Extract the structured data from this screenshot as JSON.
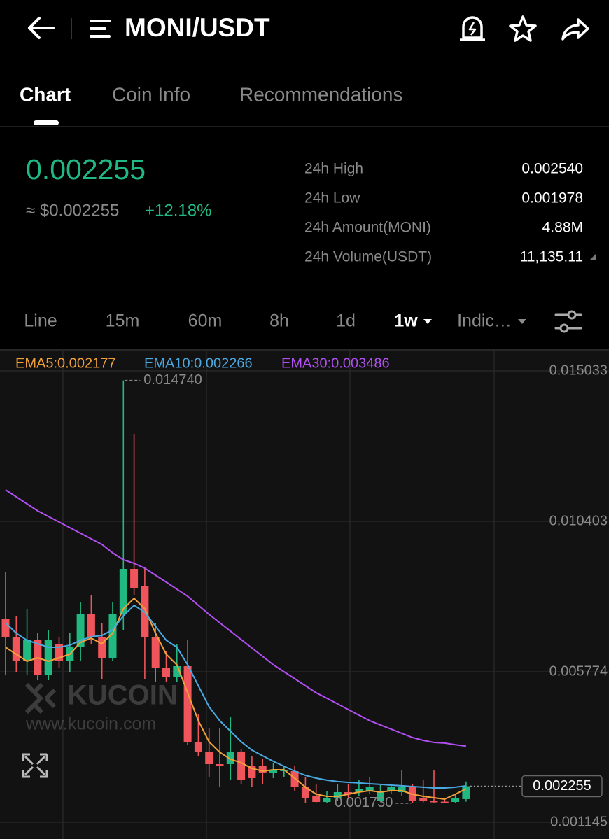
{
  "header": {
    "title": "MONI/USDT"
  },
  "tabs": [
    "Chart",
    "Coin Info",
    "Recommendations"
  ],
  "price": {
    "last": "0.002255",
    "fiat": "≈ $0.002255",
    "change": "+12.18%"
  },
  "stats": [
    {
      "label": "24h High",
      "value": "0.002540"
    },
    {
      "label": "24h Low",
      "value": "0.001978"
    },
    {
      "label": "24h Amount(MONI)",
      "value": "4.88M"
    },
    {
      "label": "24h Volume(USDT)",
      "value": "11,135.11"
    }
  ],
  "timeframes": [
    "Line",
    "15m",
    "60m",
    "8h",
    "1d",
    "1w",
    "Indic…"
  ],
  "watermark": {
    "brand": "KUCOIN",
    "url": "www.kucoin.com"
  },
  "chart_data": {
    "type": "candlestick",
    "up_color": "#20b982",
    "down_color": "#f0555b",
    "grid": true,
    "ylim": [
      0.000823,
      0.015679
    ],
    "yticks": [
      0.015033,
      0.010403,
      0.005774,
      0.001145
    ],
    "high_label": "0.014740",
    "low_label": "0.001730",
    "open": [
      0.00739,
      0.006852,
      0.006098,
      0.006744,
      0.005667,
      0.006636,
      0.006098,
      0.006529,
      0.007541,
      0.006852,
      0.006206,
      0.007541,
      0.00894,
      0.008402,
      0.006852,
      0.005883,
      0.005603,
      0.005947,
      0.003622,
      0.003299,
      0.002933,
      0.002933,
      0.003299,
      0.002869,
      0.002869,
      0.002653,
      0.002718,
      0.002718,
      0.002223,
      0.001943,
      0.00177,
      0.0019,
      0.002072,
      0.002072,
      0.002115,
      0.0018,
      0.002115,
      0.002072,
      0.002223,
      0.0019,
      0.001792,
      0.00178,
      0.00177,
      0.001857
    ],
    "high": [
      0.008832,
      0.007498,
      0.007713,
      0.006959,
      0.007067,
      0.006852,
      0.006959,
      0.007928,
      0.008143,
      0.007282,
      0.007928,
      0.01474,
      0.013095,
      0.009005,
      0.007282,
      0.006421,
      0.006636,
      0.006744,
      0.004483,
      0.004053,
      0.004053,
      0.004376,
      0.003407,
      0.003191,
      0.003084,
      0.002976,
      0.002869,
      0.002869,
      0.002546,
      0.002331,
      0.002115,
      0.002331,
      0.002331,
      0.002438,
      0.002546,
      0.002288,
      0.002331,
      0.002761,
      0.002331,
      0.002438,
      0.002761,
      0.0019,
      0.002007,
      0.0024
    ],
    "low": [
      0.005667,
      0.005775,
      0.005667,
      0.005517,
      0.005517,
      0.005883,
      0.005775,
      0.006098,
      0.006636,
      0.00556,
      0.006098,
      0.007067,
      0.008143,
      0.00556,
      0.005452,
      0.005452,
      0.005452,
      0.003515,
      0.003191,
      0.002546,
      0.002223,
      0.002438,
      0.002331,
      0.002223,
      0.002331,
      0.002503,
      0.002546,
      0.002115,
      0.00175,
      0.00176,
      0.00174,
      0.001792,
      0.0019,
      0.001943,
      0.002007,
      0.00178,
      0.002007,
      0.001943,
      0.00173,
      0.00176,
      0.00175,
      0.001745,
      0.00175,
      0.00178
    ],
    "close": [
      0.006852,
      0.006098,
      0.006744,
      0.005667,
      0.006744,
      0.006098,
      0.006529,
      0.007541,
      0.006852,
      0.006206,
      0.007541,
      0.00894,
      0.008359,
      0.006852,
      0.005883,
      0.005603,
      0.005947,
      0.003622,
      0.003299,
      0.002933,
      0.002869,
      0.003299,
      0.002438,
      0.002503,
      0.002653,
      0.002761,
      0.002761,
      0.002223,
      0.0019,
      0.00177,
      0.0019,
      0.002072,
      0.002007,
      0.002158,
      0.002223,
      0.002115,
      0.002223,
      0.002223,
      0.001792,
      0.001792,
      0.00178,
      0.00177,
      0.0019,
      0.002255
    ],
    "series": [
      {
        "name": "EMA5:0.002177",
        "color": "#f2a13a",
        "values": [
          0.006529,
          0.006314,
          0.006099,
          0.006206,
          0.006099,
          0.006206,
          0.006314,
          0.00668,
          0.006809,
          0.006637,
          0.00696,
          0.007713,
          0.008036,
          0.007713,
          0.00696,
          0.006314,
          0.005991,
          0.00513,
          0.004269,
          0.003623,
          0.0033,
          0.003084,
          0.002976,
          0.002804,
          0.002718,
          0.002761,
          0.002761,
          0.002503,
          0.002224,
          0.002008,
          0.001943,
          0.001943,
          0.002008,
          0.002073,
          0.002116,
          0.002073,
          0.002116,
          0.002116,
          0.002008,
          0.001943,
          0.0019,
          0.001857,
          0.002008,
          0.002177
        ]
      },
      {
        "name": "EMA10:0.002266",
        "color": "#4ba9e2",
        "values": [
          0.007283,
          0.00696,
          0.006744,
          0.006637,
          0.006529,
          0.006529,
          0.006594,
          0.006744,
          0.006852,
          0.006895,
          0.007067,
          0.007498,
          0.007821,
          0.007606,
          0.007175,
          0.006744,
          0.006529,
          0.005991,
          0.005345,
          0.004699,
          0.004269,
          0.003946,
          0.003623,
          0.003365,
          0.003192,
          0.00302,
          0.002869,
          0.002718,
          0.002589,
          0.002503,
          0.002439,
          0.002396,
          0.002374,
          0.002353,
          0.002331,
          0.00231,
          0.002288,
          0.002267,
          0.002245,
          0.002224,
          0.002202,
          0.002202,
          0.002224,
          0.002266
        ]
      },
      {
        "name": "EMA30:0.003486",
        "color": "#b24ff2",
        "values": [
          0.011373,
          0.011158,
          0.010942,
          0.010727,
          0.010555,
          0.010383,
          0.01021,
          0.010038,
          0.009866,
          0.009694,
          0.009436,
          0.00922,
          0.009113,
          0.008962,
          0.008747,
          0.008532,
          0.008316,
          0.008101,
          0.007821,
          0.007541,
          0.007283,
          0.007025,
          0.006766,
          0.006508,
          0.00625,
          0.005991,
          0.005776,
          0.005561,
          0.005345,
          0.00513,
          0.004958,
          0.004786,
          0.004613,
          0.004441,
          0.004269,
          0.00414,
          0.004011,
          0.003881,
          0.003752,
          0.003665,
          0.0036,
          0.00358,
          0.00353,
          0.003486
        ]
      }
    ]
  }
}
